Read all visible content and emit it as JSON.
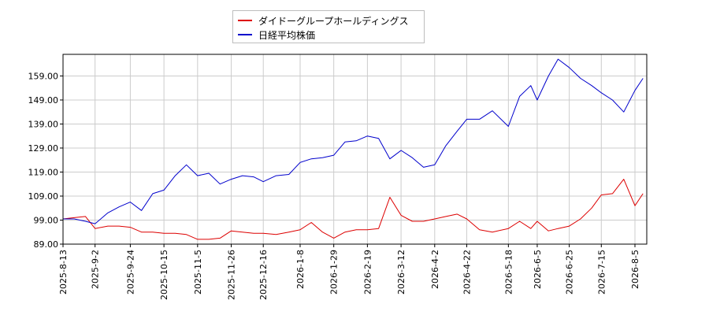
{
  "chart_data": {
    "type": "line",
    "title": "",
    "xlabel": "",
    "ylabel": "",
    "ylim": [
      89.0,
      168.0
    ],
    "yticks": [
      "89.00",
      "99.00",
      "109.00",
      "119.00",
      "129.00",
      "139.00",
      "149.00",
      "159.00"
    ],
    "xticks": [
      "2025-8-13",
      "2025-9-2",
      "2025-9-24",
      "2025-10-15",
      "2025-11-5",
      "2025-11-26",
      "2025-12-16",
      "2026-1-8",
      "2026-1-29",
      "2026-2-19",
      "2026-3-12",
      "2026-4-2",
      "2026-4-22",
      "2026-5-18",
      "2026-6-5",
      "2026-6-25",
      "2026-7-15",
      "2026-8-5"
    ],
    "grid": true,
    "legend_position": "top-center",
    "series": [
      {
        "name": "ダイドーグループホールディングス",
        "color": "#dd0000",
        "x": [
          "2025-8-13",
          "2025-8-20",
          "2025-8-27",
          "2025-9-2",
          "2025-9-10",
          "2025-9-17",
          "2025-9-24",
          "2025-10-1",
          "2025-10-8",
          "2025-10-15",
          "2025-10-22",
          "2025-10-29",
          "2025-11-5",
          "2025-11-12",
          "2025-11-19",
          "2025-11-26",
          "2025-12-3",
          "2025-12-10",
          "2025-12-16",
          "2025-12-24",
          "2026-1-1",
          "2026-1-8",
          "2026-1-15",
          "2026-1-22",
          "2026-1-29",
          "2026-2-5",
          "2026-2-12",
          "2026-2-19",
          "2026-2-26",
          "2026-3-5",
          "2026-3-12",
          "2026-3-19",
          "2026-3-26",
          "2026-4-2",
          "2026-4-9",
          "2026-4-16",
          "2026-4-22",
          "2026-4-30",
          "2026-5-8",
          "2026-5-18",
          "2026-5-25",
          "2026-6-1",
          "2026-6-5",
          "2026-6-12",
          "2026-6-18",
          "2026-6-25",
          "2026-7-2",
          "2026-7-9",
          "2026-7-15",
          "2026-7-22",
          "2026-7-29",
          "2026-8-5",
          "2026-8-10"
        ],
        "values": [
          99.5,
          100.0,
          100.5,
          95.5,
          96.5,
          96.5,
          96.0,
          94.0,
          94.0,
          93.5,
          93.5,
          93.0,
          91.0,
          91.0,
          91.5,
          94.5,
          94.0,
          93.5,
          93.5,
          93.0,
          94.0,
          95.0,
          98.0,
          94.0,
          91.5,
          94.0,
          95.0,
          95.0,
          95.5,
          108.5,
          101.0,
          98.5,
          98.5,
          99.5,
          100.5,
          101.5,
          99.5,
          95.0,
          94.0,
          95.5,
          98.5,
          95.5,
          98.5,
          94.5,
          95.5,
          96.5,
          99.5,
          104.0,
          109.5,
          110.0,
          116.0,
          105.0,
          110.0
        ]
      },
      {
        "name": "日経平均株価",
        "color": "#0000cc",
        "x": [
          "2025-8-13",
          "2025-8-20",
          "2025-8-27",
          "2025-9-2",
          "2025-9-10",
          "2025-9-17",
          "2025-9-24",
          "2025-10-1",
          "2025-10-8",
          "2025-10-15",
          "2025-10-22",
          "2025-10-29",
          "2025-11-5",
          "2025-11-12",
          "2025-11-19",
          "2025-11-26",
          "2025-12-3",
          "2025-12-10",
          "2025-12-16",
          "2025-12-24",
          "2026-1-1",
          "2026-1-8",
          "2026-1-15",
          "2026-1-22",
          "2026-1-29",
          "2026-2-5",
          "2026-2-12",
          "2026-2-19",
          "2026-2-26",
          "2026-3-5",
          "2026-3-12",
          "2026-3-19",
          "2026-3-26",
          "2026-4-2",
          "2026-4-9",
          "2026-4-16",
          "2026-4-22",
          "2026-4-30",
          "2026-5-8",
          "2026-5-18",
          "2026-5-25",
          "2026-6-1",
          "2026-6-5",
          "2026-6-12",
          "2026-6-18",
          "2026-6-25",
          "2026-7-2",
          "2026-7-9",
          "2026-7-15",
          "2026-7-22",
          "2026-7-29",
          "2026-8-5",
          "2026-8-10"
        ],
        "values": [
          99.5,
          99.5,
          98.5,
          97.5,
          102.0,
          104.5,
          106.5,
          103.0,
          110.0,
          111.5,
          117.5,
          122.0,
          117.5,
          118.5,
          114.0,
          116.0,
          117.5,
          117.0,
          115.0,
          117.5,
          118.0,
          123.0,
          124.5,
          125.0,
          126.0,
          131.5,
          132.0,
          134.0,
          133.0,
          124.5,
          128.0,
          125.0,
          121.0,
          122.0,
          130.0,
          136.0,
          141.0,
          141.0,
          144.5,
          138.0,
          150.5,
          155.0,
          149.0,
          159.0,
          166.0,
          162.5,
          158.0,
          155.0,
          152.0,
          149.0,
          144.0,
          153.0,
          158.0
        ]
      }
    ]
  }
}
